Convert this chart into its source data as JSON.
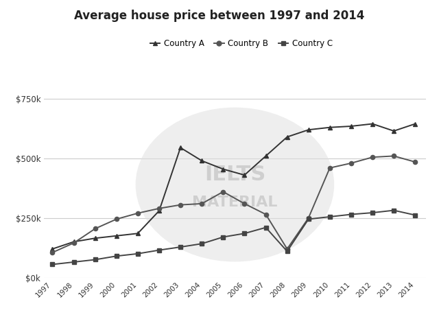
{
  "title": "Average house price between 1997 and 2014",
  "years": [
    1997,
    1998,
    1999,
    2000,
    2001,
    2002,
    2003,
    2004,
    2005,
    2006,
    2007,
    2008,
    2009,
    2010,
    2011,
    2012,
    2013,
    2014
  ],
  "country_A": [
    120000,
    150000,
    165000,
    175000,
    185000,
    280000,
    545000,
    490000,
    455000,
    430000,
    510000,
    590000,
    620000,
    630000,
    635000,
    645000,
    615000,
    645000
  ],
  "country_B": [
    105000,
    145000,
    205000,
    245000,
    270000,
    290000,
    305000,
    310000,
    360000,
    310000,
    265000,
    120000,
    250000,
    460000,
    480000,
    505000,
    510000,
    485000
  ],
  "country_C": [
    55000,
    65000,
    75000,
    90000,
    100000,
    115000,
    128000,
    142000,
    170000,
    185000,
    210000,
    110000,
    245000,
    255000,
    265000,
    272000,
    282000,
    262000
  ],
  "color_A": "#333333",
  "color_B": "#555555",
  "color_C": "#444444",
  "marker_A": "^",
  "marker_B": "o",
  "marker_C": "s",
  "background_color": "#ffffff",
  "plot_bg_color": "#ffffff",
  "ytick_labels": [
    "$0k",
    "$250k",
    "$500k",
    "$750k"
  ],
  "ytick_values": [
    0,
    250000,
    500000,
    750000
  ],
  "ylim": [
    0,
    830000
  ],
  "grid_color": "#cccccc",
  "watermark_color": "#e0e0e0",
  "legend_labels": [
    "Country A",
    "Country B",
    "Country C"
  ]
}
